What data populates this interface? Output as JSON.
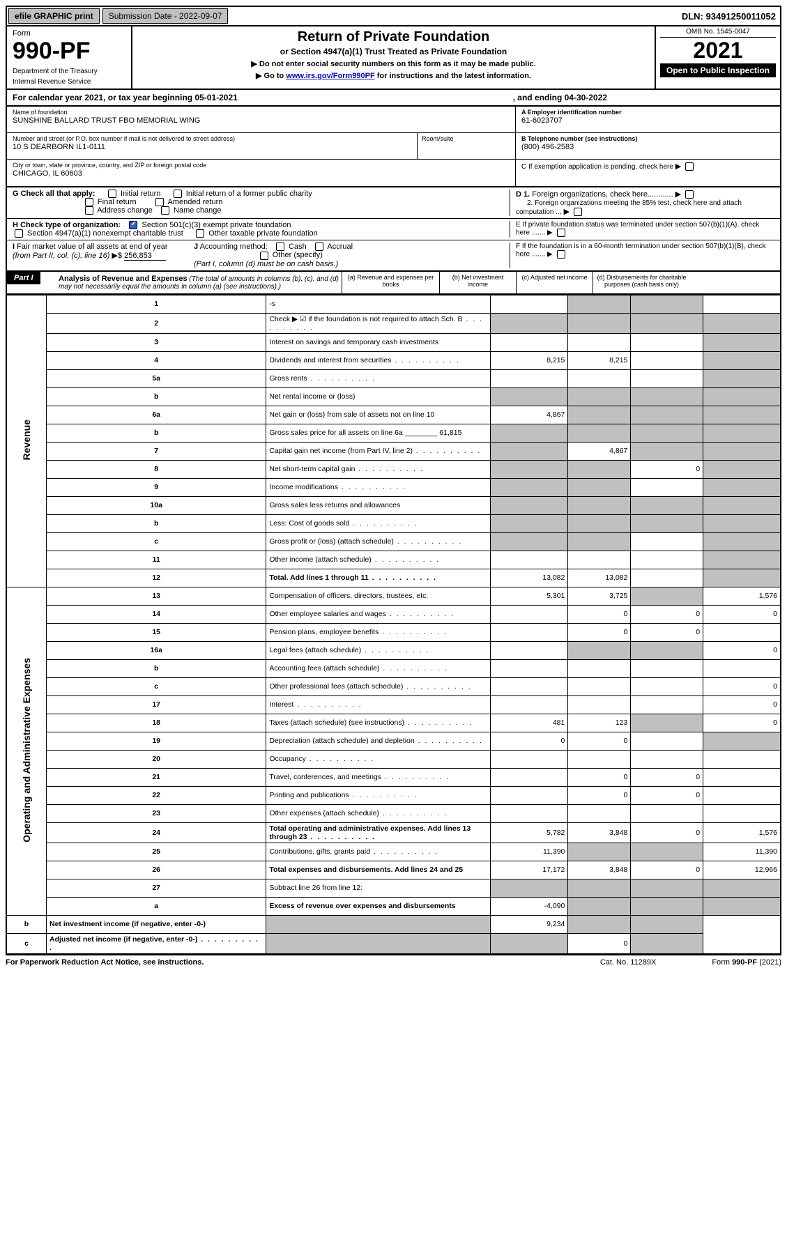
{
  "topbar": {
    "efile": "efile GRAPHIC print",
    "submission_label": "Submission Date - 2022-09-07",
    "dln": "DLN: 93491250011052"
  },
  "header": {
    "form_label": "Form",
    "form_number": "990-PF",
    "dept1": "Department of the Treasury",
    "dept2": "Internal Revenue Service",
    "title": "Return of Private Foundation",
    "subtitle": "or Section 4947(a)(1) Trust Treated as Private Foundation",
    "note1": "▶ Do not enter social security numbers on this form as it may be made public.",
    "note2": "▶ Go to www.irs.gov/Form990PF for instructions and the latest information.",
    "omb": "OMB No. 1545-0047",
    "year": "2021",
    "open": "Open to Public Inspection"
  },
  "calendar": {
    "text": "For calendar year 2021, or tax year beginning 05-01-2021",
    "end": ", and ending 04-30-2022"
  },
  "info": {
    "name_label": "Name of foundation",
    "name": "SUNSHINE BALLARD TRUST FBO MEMORIAL WING",
    "addr_label": "Number and street (or P.O. box number if mail is not delivered to street address)",
    "addr": "10 S DEARBORN IL1-0111",
    "room_label": "Room/suite",
    "city_label": "City or town, state or province, country, and ZIP or foreign postal code",
    "city": "CHICAGO, IL  60603",
    "ein_label": "A Employer identification number",
    "ein": "61-6023707",
    "phone_label": "B Telephone number (see instructions)",
    "phone": "(800) 496-2583",
    "c_label": "C If exemption application is pending, check here",
    "d1": "D 1. Foreign organizations, check here............",
    "d2": "2. Foreign organizations meeting the 85% test, check here and attach computation ...",
    "e_label": "E  If private foundation status was terminated under section 507(b)(1)(A), check here .......",
    "f_label": "F  If the foundation is in a 60-month termination under section 507(b)(1)(B), check here .......",
    "g_label": "G Check all that apply:",
    "g_initial": "Initial return",
    "g_initial_former": "Initial return of a former public charity",
    "g_final": "Final return",
    "g_amended": "Amended return",
    "g_addr": "Address change",
    "g_name": "Name change",
    "h_label": "H Check type of organization:",
    "h_501c3": "Section 501(c)(3) exempt private foundation",
    "h_4947": "Section 4947(a)(1) nonexempt charitable trust",
    "h_other": "Other taxable private foundation",
    "i_label": "I Fair market value of all assets at end of year (from Part II, col. (c), line 16) ▶$",
    "i_val": "256,853",
    "j_label": "J Accounting method:",
    "j_cash": "Cash",
    "j_accrual": "Accrual",
    "j_other": "Other (specify)",
    "j_note": "(Part I, column (d) must be on cash basis.)"
  },
  "part1": {
    "label": "Part I",
    "title": "Analysis of Revenue and Expenses",
    "desc": "(The total of amounts in columns (b), (c), and (d) may not necessarily equal the amounts in column (a) (see instructions).)",
    "col_a": "(a)   Revenue and expenses per books",
    "col_b": "(b)   Net investment income",
    "col_c": "(c)   Adjusted net income",
    "col_d": "(d)   Disbursements for charitable purposes (cash basis only)"
  },
  "sidebar": {
    "revenue": "Revenue",
    "expenses": "Operating and Administrative Expenses"
  },
  "rows": [
    {
      "n": "1",
      "d": "-s",
      "a": "",
      "b": "-s",
      "c": "-s"
    },
    {
      "n": "2",
      "d": "Check ▶ ☑ if the foundation is not required to attach Sch. B",
      "a": "-s",
      "b": "-s",
      "c": "-s",
      "dcol": "-s",
      "dots": true
    },
    {
      "n": "3",
      "d": "Interest on savings and temporary cash investments",
      "a": "",
      "b": "",
      "c": "",
      "dcol": "-s"
    },
    {
      "n": "4",
      "d": "Dividends and interest from securities",
      "a": "8,215",
      "b": "8,215",
      "c": "",
      "dcol": "-s",
      "dots": true
    },
    {
      "n": "5a",
      "d": "Gross rents",
      "a": "",
      "b": "",
      "c": "",
      "dcol": "-s",
      "dots": true
    },
    {
      "n": "b",
      "d": "Net rental income or (loss)",
      "a": "-s",
      "b": "-s",
      "c": "-s",
      "dcol": "-s"
    },
    {
      "n": "6a",
      "d": "Net gain or (loss) from sale of assets not on line 10",
      "a": "4,867",
      "b": "-s",
      "c": "-s",
      "dcol": "-s"
    },
    {
      "n": "b",
      "d": "Gross sales price for all assets on line 6a ________ 61,815",
      "a": "-s",
      "b": "-s",
      "c": "-s",
      "dcol": "-s"
    },
    {
      "n": "7",
      "d": "Capital gain net income (from Part IV, line 2)",
      "a": "-s",
      "b": "4,867",
      "c": "-s",
      "dcol": "-s",
      "dots": true
    },
    {
      "n": "8",
      "d": "Net short-term capital gain",
      "a": "-s",
      "b": "-s",
      "c": "0",
      "dcol": "-s",
      "dots": true
    },
    {
      "n": "9",
      "d": "Income modifications",
      "a": "-s",
      "b": "-s",
      "c": "",
      "dcol": "-s",
      "dots": true
    },
    {
      "n": "10a",
      "d": "Gross sales less returns and allowances",
      "a": "-s",
      "b": "-s",
      "c": "-s",
      "dcol": "-s"
    },
    {
      "n": "b",
      "d": "Less: Cost of goods sold",
      "a": "-s",
      "b": "-s",
      "c": "-s",
      "dcol": "-s",
      "dots": true
    },
    {
      "n": "c",
      "d": "Gross profit or (loss) (attach schedule)",
      "a": "-s",
      "b": "-s",
      "c": "",
      "dcol": "-s",
      "dots": true
    },
    {
      "n": "11",
      "d": "Other income (attach schedule)",
      "a": "",
      "b": "",
      "c": "",
      "dcol": "-s",
      "dots": true
    },
    {
      "n": "12",
      "d": "Total. Add lines 1 through 11",
      "a": "13,082",
      "b": "13,082",
      "c": "",
      "dcol": "-s",
      "bold": true,
      "dots": true
    },
    {
      "n": "13",
      "d": "Compensation of officers, directors, trustees, etc.",
      "a": "5,301",
      "b": "3,725",
      "c": "-s",
      "dcol": "1,576"
    },
    {
      "n": "14",
      "d": "Other employee salaries and wages",
      "a": "",
      "b": "0",
      "c": "0",
      "dcol": "0",
      "dots": true
    },
    {
      "n": "15",
      "d": "Pension plans, employee benefits",
      "a": "",
      "b": "0",
      "c": "0",
      "dcol": "",
      "dots": true
    },
    {
      "n": "16a",
      "d": "Legal fees (attach schedule)",
      "a": "",
      "b": "-s",
      "c": "-s",
      "dcol": "0",
      "dots": true
    },
    {
      "n": "b",
      "d": "Accounting fees (attach schedule)",
      "a": "",
      "b": "",
      "c": "",
      "dcol": "",
      "dots": true
    },
    {
      "n": "c",
      "d": "Other professional fees (attach schedule)",
      "a": "",
      "b": "",
      "c": "",
      "dcol": "0",
      "dots": true
    },
    {
      "n": "17",
      "d": "Interest",
      "a": "",
      "b": "",
      "c": "",
      "dcol": "0",
      "dots": true
    },
    {
      "n": "18",
      "d": "Taxes (attach schedule) (see instructions)",
      "a": "481",
      "b": "123",
      "c": "-s",
      "dcol": "0",
      "dots": true
    },
    {
      "n": "19",
      "d": "Depreciation (attach schedule) and depletion",
      "a": "0",
      "b": "0",
      "c": "",
      "dcol": "-s",
      "dots": true
    },
    {
      "n": "20",
      "d": "Occupancy",
      "a": "",
      "b": "",
      "c": "",
      "dcol": "",
      "dots": true
    },
    {
      "n": "21",
      "d": "Travel, conferences, and meetings",
      "a": "",
      "b": "0",
      "c": "0",
      "dcol": "",
      "dots": true
    },
    {
      "n": "22",
      "d": "Printing and publications",
      "a": "",
      "b": "0",
      "c": "0",
      "dcol": "",
      "dots": true
    },
    {
      "n": "23",
      "d": "Other expenses (attach schedule)",
      "a": "",
      "b": "",
      "c": "",
      "dcol": "",
      "dots": true
    },
    {
      "n": "24",
      "d": "Total operating and administrative expenses. Add lines 13 through 23",
      "a": "5,782",
      "b": "3,848",
      "c": "0",
      "dcol": "1,576",
      "bold": true,
      "dots": true
    },
    {
      "n": "25",
      "d": "Contributions, gifts, grants paid",
      "a": "11,390",
      "b": "-s",
      "c": "-s",
      "dcol": "11,390",
      "dots": true
    },
    {
      "n": "26",
      "d": "Total expenses and disbursements. Add lines 24 and 25",
      "a": "17,172",
      "b": "3,848",
      "c": "0",
      "dcol": "12,966",
      "bold": true
    },
    {
      "n": "27",
      "d": "Subtract line 26 from line 12:",
      "a": "-s",
      "b": "-s",
      "c": "-s",
      "dcol": "-s"
    },
    {
      "n": "a",
      "d": "Excess of revenue over expenses and disbursements",
      "a": "-4,090",
      "b": "-s",
      "c": "-s",
      "dcol": "-s",
      "bold": true
    },
    {
      "n": "b",
      "d": "Net investment income (if negative, enter -0-)",
      "a": "-s",
      "b": "9,234",
      "c": "-s",
      "dcol": "-s",
      "bold": true
    },
    {
      "n": "c",
      "d": "Adjusted net income (if negative, enter -0-)",
      "a": "-s",
      "b": "-s",
      "c": "0",
      "dcol": "-s",
      "bold": true,
      "dots": true
    }
  ],
  "footer": {
    "left": "For Paperwork Reduction Act Notice, see instructions.",
    "mid": "Cat. No. 11289X",
    "right": "Form 990-PF (2021)"
  },
  "colors": {
    "shade": "#c0c0c0",
    "check": "#2962d9",
    "link": "#0000cc"
  }
}
